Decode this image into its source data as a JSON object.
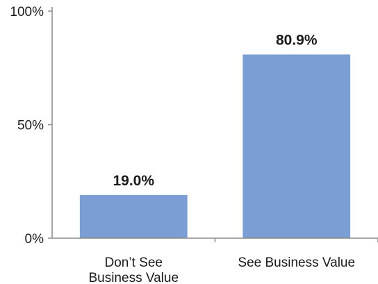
{
  "chart_data": {
    "type": "bar",
    "categories": [
      [
        "Don’t See",
        "Business Value"
      ],
      [
        "See Business Value"
      ]
    ],
    "values": [
      19.0,
      80.9
    ],
    "value_labels": [
      "19.0%",
      "80.9%"
    ],
    "y_ticks": [
      {
        "value": 0,
        "label": "0%"
      },
      {
        "value": 50,
        "label": "50%"
      },
      {
        "value": 100,
        "label": "100%"
      }
    ],
    "ylim": [
      0,
      100
    ],
    "title": "",
    "xlabel": "",
    "ylabel": "",
    "grid": false,
    "bar_color": "#7b9fd4",
    "axis_color": "#8c8c8c"
  }
}
